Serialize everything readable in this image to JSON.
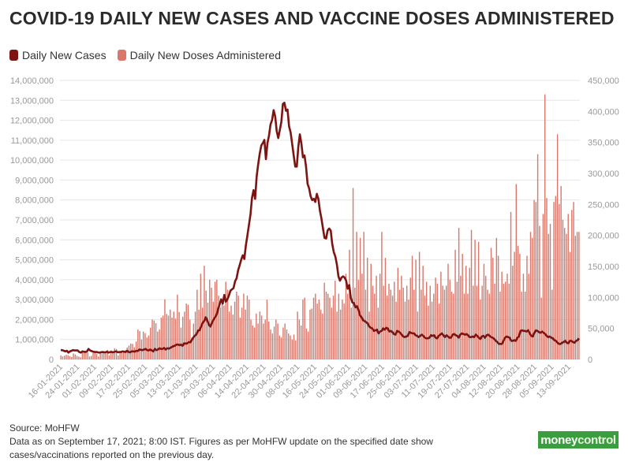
{
  "chart_data": {
    "type": "bar+line",
    "title": "COVID-19 DAILY NEW CASES AND VACCINE DOSES ADMINISTERED",
    "legend": [
      {
        "name": "Daily New Cases",
        "color": "#7d1411"
      },
      {
        "name": "Daily New Doses Administered",
        "color": "#d9776a"
      }
    ],
    "left_axis": {
      "min": 0,
      "max": 14000000,
      "step": 1000000,
      "tick_labels": [
        "0",
        "1,000,000",
        "2,000,000",
        "3,000,000",
        "4,000,000",
        "5,000,000",
        "6,000,000",
        "7,000,000",
        "8,000,000",
        "9,000,000",
        "10,000,000",
        "11,000,000",
        "12,000,000",
        "13,000,000",
        "14,000,000"
      ]
    },
    "right_axis": {
      "min": 0,
      "max": 450000,
      "step": 50000,
      "tick_labels": [
        "0",
        "50,000",
        "100,000",
        "150,000",
        "200,000",
        "250,000",
        "300,000",
        "350,000",
        "400,000",
        "450,000"
      ]
    },
    "x_labels": [
      "16-01-2021",
      "24-01-2021",
      "01-02-2021",
      "09-02-2021",
      "17-02-2021",
      "25-02-2021",
      "05-03-2021",
      "13-03-2021",
      "21-03-2021",
      "29-03-2021",
      "06-04-2021",
      "14-04-2021",
      "22-04-2021",
      "30-04-2021",
      "08-05-2021",
      "16-05-2021",
      "24-05-2021",
      "01-06-2021",
      "09-06-2021",
      "17-06-2021",
      "25-06-2021",
      "03-07-2021",
      "11-07-2021",
      "19-07-2021",
      "27-07-2021",
      "04-08-2021",
      "12-08-2021",
      "20-08-2021",
      "28-08-2021",
      "05-09-2021",
      "13-09-2021"
    ],
    "series": [
      {
        "name": "Daily New Doses Administered",
        "axis": "left",
        "type": "bar",
        "values": [
          200000,
          150000,
          190000,
          230000,
          210000,
          170000,
          120000,
          300000,
          250000,
          180000,
          140000,
          110000,
          380000,
          410000,
          420000,
          350000,
          150000,
          180000,
          320000,
          380000,
          280000,
          150000,
          330000,
          300000,
          410000,
          370000,
          480000,
          200000,
          450000,
          380000,
          560000,
          520000,
          200000,
          350000,
          420000,
          380000,
          460000,
          600000,
          700000,
          800000,
          780000,
          610000,
          900000,
          1500000,
          1420000,
          1000000,
          1400000,
          1320000,
          1100000,
          1200000,
          1600000,
          2000000,
          1950000,
          1820000,
          1400000,
          1500000,
          2100000,
          2200000,
          3020000,
          2280000,
          2200000,
          2500000,
          2100000,
          2400000,
          2050000,
          3250000,
          2380000,
          1600000,
          2150000,
          2400000,
          2800000,
          2750000,
          2000000,
          1100000,
          1800000,
          2400000,
          3500000,
          2500000,
          4300000,
          2600000,
          4700000,
          3450000,
          2850000,
          4000000,
          3600000,
          2900000,
          3900000,
          4000000,
          3200000,
          2600000,
          2900000,
          2700000,
          3900000,
          3500000,
          2400000,
          2700000,
          2250000,
          2900000,
          3400000,
          3200000,
          2100000,
          2600000,
          3300000,
          2500000,
          3200000,
          3000000,
          2000000,
          1700000,
          1600000,
          2300000,
          1800000,
          2400000,
          2200000,
          1800000,
          2000000,
          3000000,
          1900000,
          1500000,
          1300000,
          1650000,
          2000000,
          1800000,
          1200000,
          1100000,
          1600000,
          1800000,
          1500000,
          1300000,
          1200000,
          1000000,
          1250000,
          950000,
          2400000,
          2000000,
          1700000,
          3000000,
          3100000,
          1550000,
          1400000,
          2500000,
          2550000,
          3100000,
          3300000,
          2800000,
          3000000,
          2500000,
          2300000,
          3850000,
          3400000,
          3300000,
          3100000,
          2600000,
          3200000,
          3950000,
          2400000,
          3300000,
          2500000,
          3000000,
          2800000,
          4300000,
          3300000,
          5500000,
          2600000,
          8600000,
          3600000,
          6400000,
          4000000,
          6100000,
          4300000,
          6400000,
          3500000,
          5100000,
          2400000,
          4800000,
          3700000,
          3300000,
          4200000,
          2600000,
          4300000,
          6400000,
          3700000,
          5100000,
          3200000,
          3800000,
          3500000,
          3200000,
          3900000,
          2900000,
          4600000,
          3500000,
          4200000,
          3600000,
          2900000,
          3700000,
          3000000,
          4100000,
          5200000,
          3500000,
          5000000,
          2400000,
          5400000,
          3500000,
          4700000,
          3200000,
          3900000,
          2700000,
          3700000,
          2900000,
          3300000,
          4100000,
          3800000,
          2800000,
          4400000,
          3700000,
          3500000,
          3700000,
          4800000,
          4000000,
          3400000,
          3300000,
          5500000,
          3900000,
          6600000,
          4200000,
          5300000,
          3300000,
          4700000,
          3300000,
          4600000,
          6500000,
          3700000,
          6000000,
          3700000,
          5900000,
          3000000,
          3700000,
          4800000,
          4200000,
          3500000,
          3300000,
          5600000,
          5100000,
          3800000,
          6100000,
          5200000,
          3400000,
          4400000,
          3800000,
          3900000,
          4300000,
          3800000,
          7400000,
          4700000,
          5400000,
          8800000,
          5700000,
          5300000,
          3400000,
          4300000,
          3400000,
          5200000,
          4300000,
          6400000,
          6100000,
          8000000,
          7900000,
          10300000,
          6700000,
          3100000,
          7300000,
          13300000,
          8100000,
          6300000,
          6800000,
          3500000,
          7900000,
          8200000,
          11300000,
          7800000,
          8700000,
          7000000,
          6600000,
          6300000,
          7300000,
          5400000,
          7500000,
          7900000,
          6200000,
          6400000,
          6400000
        ]
      },
      {
        "name": "Daily New Cases",
        "axis": "right",
        "type": "line",
        "values": [
          15000,
          15000,
          14000,
          13000,
          14000,
          11000,
          13000,
          14000,
          15000,
          14500,
          14500,
          14500,
          12000,
          11000,
          13000,
          12500,
          12000,
          13000,
          17000,
          14500,
          13500,
          12500,
          12000,
          12000,
          11500,
          11000,
          11500,
          12000,
          11500,
          11500,
          12500,
          11000,
          12000,
          12000,
          11500,
          12500,
          13000,
          11500,
          12000,
          12000,
          13000,
          12500,
          12000,
          14000,
          12000,
          11500,
          13000,
          13000,
          12500,
          14000,
          13500,
          16000,
          15500,
          15000,
          16000,
          17000,
          15000,
          14500,
          16000,
          14500,
          13000,
          17000,
          15000,
          16000,
          18000,
          17000,
          17000,
          18500,
          16000,
          18000,
          17500,
          18500,
          20000,
          21500,
          22000,
          24000,
          24000,
          23000,
          24000,
          22000,
          26000,
          25500,
          26000,
          28000,
          27500,
          31500,
          35500,
          38500,
          40500,
          46500,
          47000,
          53000,
          59000,
          62000,
          68000,
          63000,
          56000,
          53000,
          59000,
          64000,
          68000,
          72000,
          81000,
          89000,
          97000,
          90000,
          104000,
          93000,
          97000,
          103000,
          111000,
          113000,
          115000,
          126000,
          131000,
          144000,
          152000,
          161000,
          168000,
          162000,
          184000,
          200000,
          217000,
          234000,
          261000,
          273000,
          259000,
          295000,
          315000,
          332000,
          345000,
          349000,
          354000,
          323000,
          349000,
          361000,
          379000,
          386000,
          402000,
          392000,
          368000,
          357000,
          370000,
          383000,
          412000,
          414000,
          401000,
          403000,
          376000,
          366000,
          348000,
          329000,
          311000,
          311000,
          343000,
          363000,
          348000,
          326000,
          329000,
          311000,
          283000,
          276000,
          263000,
          257000,
          259000,
          254000,
          267000,
          259000,
          240000,
          227000,
          211000,
          196000,
          195000,
          208000,
          211000,
          208000,
          186000,
          173000,
          166000,
          153000,
          134000,
          127000,
          132000,
          134000,
          132000,
          127000,
          114000,
          120000,
          100000,
          92000,
          91000,
          84000,
          86000,
          80000,
          71000,
          68000,
          63000,
          62000,
          60000,
          58000,
          53000,
          51000,
          50000,
          46000,
          47000,
          48000,
          42000,
          45000,
          46000,
          50000,
          48000,
          51000,
          50000,
          45000,
          46000,
          44000,
          41000,
          40000,
          46000,
          45000,
          43000,
          40000,
          37000,
          36000,
          37000,
          38000,
          44000,
          43000,
          42000,
          42000,
          39000,
          38000,
          36000,
          38000,
          40000,
          38000,
          35000,
          34000,
          34000,
          35000,
          39000,
          38000,
          39000,
          35000,
          34000,
          38000,
          40000,
          42000,
          39000,
          36000,
          39000,
          37000,
          35000,
          35000,
          40000,
          41000,
          39000,
          38000,
          35000,
          40000,
          42000,
          41000,
          40000,
          41000,
          39000,
          36000,
          36000,
          37000,
          36000,
          40000,
          38000,
          35000,
          33000,
          37000,
          38000,
          35000,
          39000,
          40000,
          38000,
          36000,
          35000,
          33000,
          30000,
          28000,
          25000,
          25000,
          25000,
          30000,
          35000,
          37000,
          36000,
          35000,
          30000,
          30000,
          31000,
          30000,
          35000,
          37000,
          46000,
          47000,
          46000,
          46000,
          45000,
          47000,
          42000,
          38000,
          37000,
          43000,
          47000,
          46000,
          44000,
          43000,
          45000,
          43000,
          41000,
          38000,
          36000,
          37000,
          35000,
          34000,
          31000,
          30000,
          27000,
          25000,
          25000,
          27000,
          28000,
          30000,
          27000,
          26000,
          30000,
          30000,
          28000,
          27000,
          30000,
          31000,
          34000
        ]
      }
    ]
  },
  "footer": {
    "source": "Source: MoHFW",
    "note": "Data as on September 17, 2021; 8:00 IST. Figures as per MoHFW update on the specified date show cases/vaccinations reported on the previous day."
  },
  "logo": {
    "part1": "money",
    "part2": "control"
  }
}
